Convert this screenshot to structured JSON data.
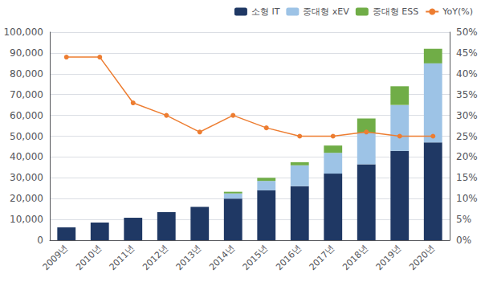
{
  "chart_data": {
    "type": "bar",
    "categories": [
      "2009년",
      "2010년",
      "2011년",
      "2012년",
      "2013년",
      "2014년",
      "2015년",
      "2016년",
      "2017년",
      "2018년",
      "2019년",
      "2020년"
    ],
    "series": [
      {
        "name": "소형 IT",
        "color": "#1f3864",
        "values": [
          6200,
          8500,
          10800,
          13500,
          16000,
          20000,
          24000,
          26000,
          32000,
          36500,
          43000,
          47000
        ]
      },
      {
        "name": "중대형 xEV",
        "color": "#9dc3e6",
        "values": [
          0,
          0,
          0,
          0,
          0,
          2500,
          4500,
          10000,
          10000,
          15000,
          22000,
          38000
        ]
      },
      {
        "name": "중대형 ESS",
        "color": "#70ad47",
        "values": [
          0,
          0,
          0,
          0,
          0,
          800,
          1500,
          1500,
          3500,
          7000,
          9000,
          7000
        ]
      },
      {
        "name": "YoY(%)",
        "type": "line",
        "axis": "y2",
        "color": "#ed7d31",
        "marker": "circle",
        "values": [
          44,
          44,
          33,
          30,
          26,
          30,
          27,
          25,
          25,
          26,
          25,
          25
        ]
      }
    ],
    "stacked": true,
    "ylim": [
      0,
      100000
    ],
    "yticks": [
      0,
      {
        "value": 10000,
        "label": "10,000"
      },
      {
        "value": 20000,
        "label": "20,000"
      },
      {
        "value": 30000,
        "label": "30,000"
      },
      {
        "value": 40000,
        "label": "40,000"
      },
      {
        "value": 50000,
        "label": "50,000"
      },
      {
        "value": 60000,
        "label": "60,000"
      },
      {
        "value": 70000,
        "label": "70,000"
      },
      {
        "value": 80000,
        "label": "80,000"
      },
      {
        "value": 90000,
        "label": "90,000"
      },
      {
        "value": 100000,
        "label": "100,000"
      }
    ],
    "y2lim": [
      0,
      50
    ],
    "y2ticks": [
      {
        "value": 0,
        "label": "0%"
      },
      {
        "value": 5,
        "label": "5%"
      },
      {
        "value": 10,
        "label": "10%"
      },
      {
        "value": 15,
        "label": "15%"
      },
      {
        "value": 20,
        "label": "20%"
      },
      {
        "value": 25,
        "label": "25%"
      },
      {
        "value": 30,
        "label": "30%"
      },
      {
        "value": 35,
        "label": "35%"
      },
      {
        "value": 40,
        "label": "40%"
      },
      {
        "value": 45,
        "label": "45%"
      },
      {
        "value": 50,
        "label": "50%"
      }
    ],
    "grid": true,
    "legend": "upper right"
  }
}
